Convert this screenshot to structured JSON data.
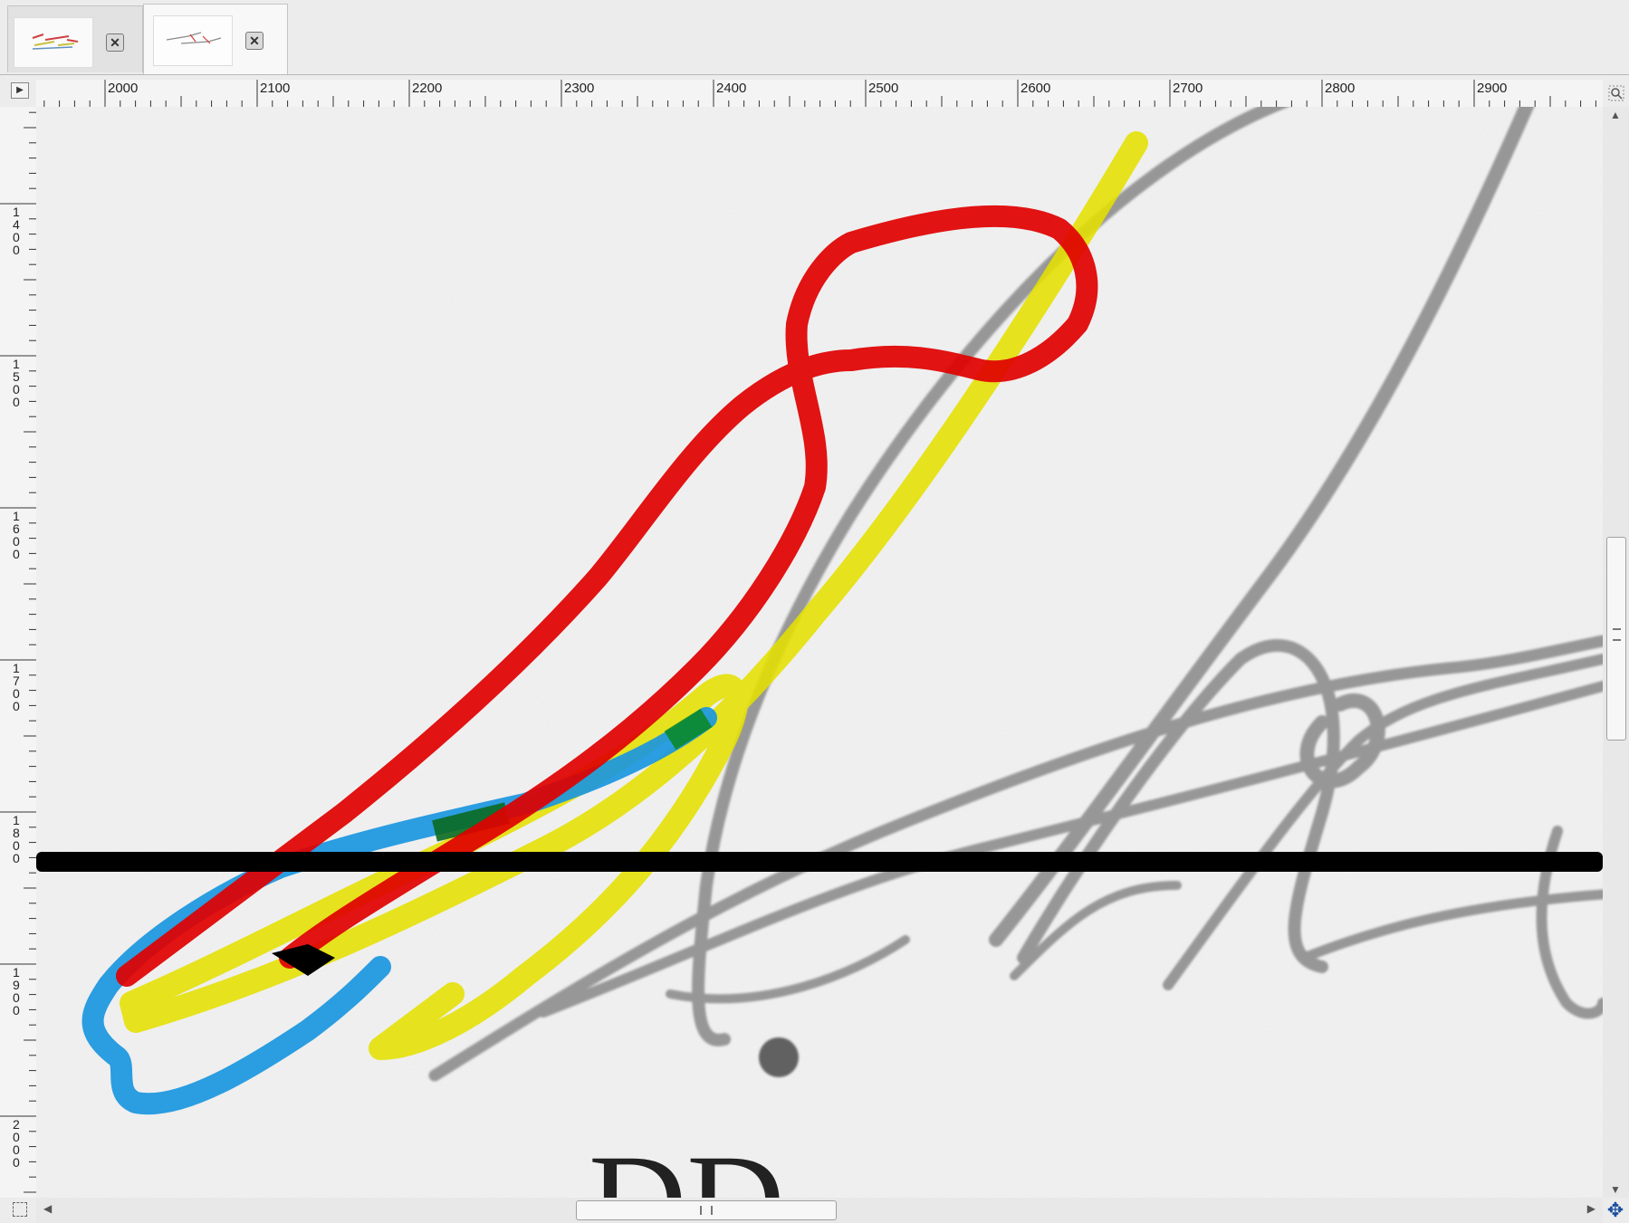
{
  "window": {
    "tabs": [
      {
        "label": "",
        "thumbnail": "signature-thumbnail-1",
        "close_icon": "close-icon"
      },
      {
        "label": "",
        "thumbnail": "signature-thumbnail-2",
        "close_icon": "close-icon"
      }
    ],
    "close_glyph": "✕"
  },
  "rulers": {
    "horizontal_labels": [
      "2000",
      "2100",
      "2200",
      "2300",
      "2400",
      "2500",
      "2600",
      "2700",
      "2800",
      "2900"
    ],
    "vertical_labels": [
      "1400",
      "1500",
      "1600",
      "1700",
      "1800",
      "1900",
      "2000"
    ]
  },
  "canvas": {
    "background_color": "#f1f1f1",
    "pencil_color": "#7a7a7a",
    "stroke_colors": {
      "red": "#e00000",
      "yellow": "#e5e000",
      "blue": "#1a96e0",
      "green": "#0a8a2a",
      "baseline": "#000000"
    },
    "partial_text": "DD"
  },
  "icons": {
    "navigation_button": "menu-arrow-icon",
    "zoom_corner": "zoom-icon",
    "quick_mask": "quick-mask-icon",
    "navigate": "navigate-icon"
  }
}
